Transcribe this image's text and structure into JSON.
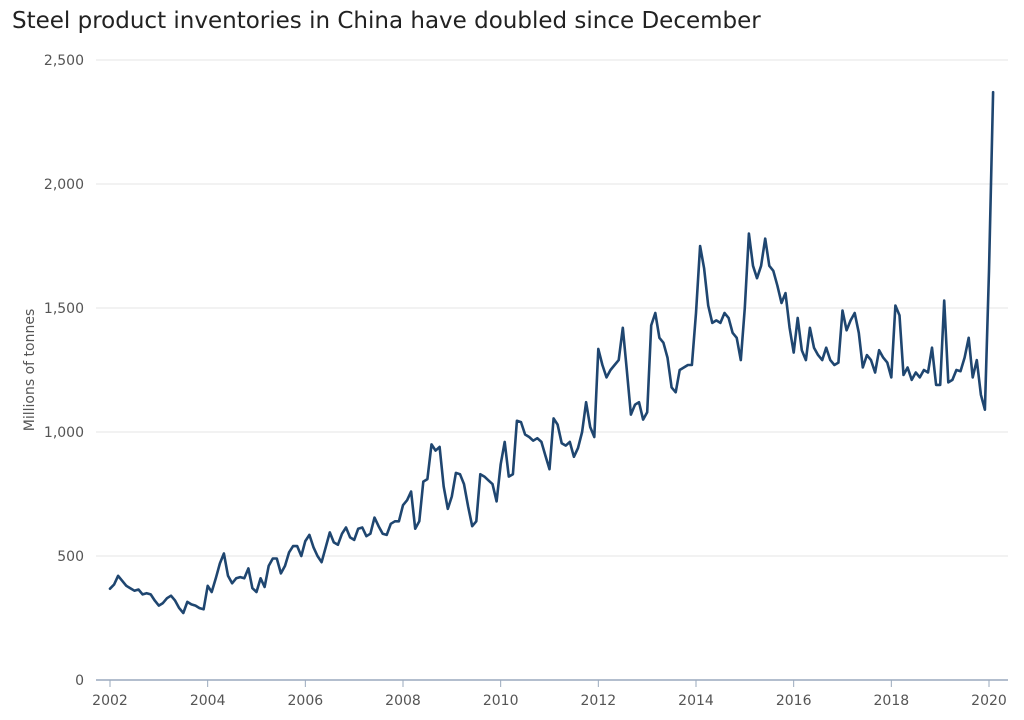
{
  "chart_data": {
    "type": "line",
    "title": "Steel product inventories in China have doubled since December",
    "xlabel": "",
    "ylabel": "Millions of tonnes",
    "ylim": [
      0,
      2500
    ],
    "xlim": [
      2002,
      2020.4
    ],
    "y_ticks": [
      "0",
      "500",
      "1,000",
      "1,500",
      "2,000",
      "2,500"
    ],
    "x_ticks": [
      "2002",
      "2004",
      "2006",
      "2008",
      "2010",
      "2012",
      "2014",
      "2016",
      "2018",
      "2020"
    ],
    "grid": "horizontal",
    "colors": {
      "line": "#1f4670",
      "grid": "#e4e4e4"
    },
    "series": [
      {
        "start_year": 2002,
        "frequency": "monthly",
        "values": [
          368,
          385,
          420,
          400,
          380,
          370,
          360,
          365,
          345,
          350,
          345,
          320,
          300,
          310,
          330,
          340,
          320,
          290,
          270,
          315,
          305,
          300,
          290,
          285,
          380,
          355,
          410,
          470,
          510,
          420,
          390,
          410,
          415,
          410,
          450,
          370,
          355,
          410,
          375,
          460,
          490,
          490,
          430,
          460,
          515,
          540,
          540,
          500,
          560,
          585,
          535,
          500,
          475,
          535,
          595,
          555,
          545,
          590,
          615,
          575,
          565,
          610,
          615,
          580,
          590,
          655,
          620,
          590,
          585,
          630,
          640,
          640,
          705,
          725,
          760,
          610,
          640,
          800,
          810,
          950,
          925,
          940,
          780,
          690,
          740,
          835,
          830,
          790,
          700,
          620,
          640,
          830,
          820,
          805,
          790,
          720,
          870,
          960,
          820,
          830,
          1045,
          1040,
          990,
          980,
          965,
          975,
          960,
          905,
          850,
          1055,
          1030,
          955,
          945,
          960,
          900,
          935,
          1000,
          1120,
          1020,
          980,
          1335,
          1270,
          1220,
          1250,
          1270,
          1290,
          1420,
          1250,
          1070,
          1110,
          1120,
          1050,
          1080,
          1430,
          1480,
          1380,
          1360,
          1300,
          1180,
          1160,
          1250,
          1260,
          1270,
          1270,
          1480,
          1750,
          1660,
          1510,
          1440,
          1450,
          1440,
          1480,
          1460,
          1400,
          1380,
          1290,
          1500,
          1800,
          1670,
          1620,
          1670,
          1780,
          1670,
          1650,
          1590,
          1520,
          1560,
          1420,
          1320,
          1460,
          1330,
          1290,
          1420,
          1340,
          1310,
          1290,
          1340,
          1290,
          1270,
          1280,
          1490,
          1410,
          1450,
          1480,
          1400,
          1260,
          1310,
          1290,
          1240,
          1330,
          1300,
          1280,
          1220,
          1510,
          1470,
          1230,
          1260,
          1210,
          1240,
          1220,
          1250,
          1240,
          1340,
          1190,
          1190,
          1530,
          1200,
          1210,
          1250,
          1245,
          1300,
          1380,
          1220,
          1290,
          1150,
          1090,
          1650,
          2370
        ]
      }
    ]
  }
}
